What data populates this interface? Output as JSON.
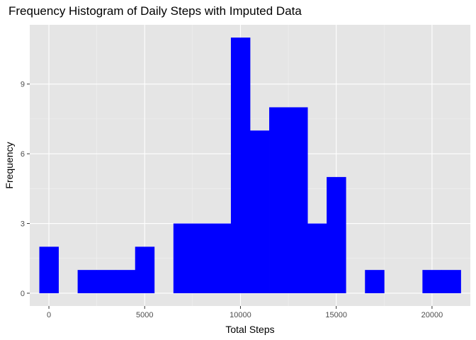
{
  "chart_data": {
    "type": "bar",
    "title": "Frequency Histogram of Daily Steps with Imputed Data",
    "xlabel": "Total Steps",
    "ylabel": "Frequency",
    "xlim": [
      -1000,
      22000
    ],
    "ylim": [
      -0.55,
      11.55
    ],
    "bin_width": 1000,
    "bins": [
      {
        "x": 0,
        "count": 2
      },
      {
        "x": 1000,
        "count": 0
      },
      {
        "x": 2000,
        "count": 1
      },
      {
        "x": 3000,
        "count": 1
      },
      {
        "x": 4000,
        "count": 1
      },
      {
        "x": 5000,
        "count": 2
      },
      {
        "x": 6000,
        "count": 0
      },
      {
        "x": 7000,
        "count": 3
      },
      {
        "x": 8000,
        "count": 3
      },
      {
        "x": 9000,
        "count": 3
      },
      {
        "x": 10000,
        "count": 11
      },
      {
        "x": 11000,
        "count": 7
      },
      {
        "x": 12000,
        "count": 8
      },
      {
        "x": 13000,
        "count": 8
      },
      {
        "x": 14000,
        "count": 3
      },
      {
        "x": 15000,
        "count": 5
      },
      {
        "x": 16000,
        "count": 0
      },
      {
        "x": 17000,
        "count": 1
      },
      {
        "x": 18000,
        "count": 0
      },
      {
        "x": 19000,
        "count": 0
      },
      {
        "x": 20000,
        "count": 1
      },
      {
        "x": 21000,
        "count": 1
      }
    ],
    "x_ticks": [
      {
        "value": 0,
        "label": "0"
      },
      {
        "value": 5000,
        "label": "5000"
      },
      {
        "value": 10000,
        "label": "10000"
      },
      {
        "value": 15000,
        "label": "15000"
      },
      {
        "value": 20000,
        "label": "20000"
      }
    ],
    "y_ticks": [
      {
        "value": 0,
        "label": "0"
      },
      {
        "value": 3,
        "label": "3"
      },
      {
        "value": 6,
        "label": "6"
      },
      {
        "value": 9,
        "label": "9"
      }
    ],
    "grid": true,
    "legend": "none",
    "colors": {
      "bar": "#0000ff",
      "panel_background": "#e5e5e5",
      "grid_major": "#ffffff",
      "grid_minor": "#f2f2f2",
      "tick_mark": "#333333",
      "tick_text": "#4d4d4d"
    }
  }
}
